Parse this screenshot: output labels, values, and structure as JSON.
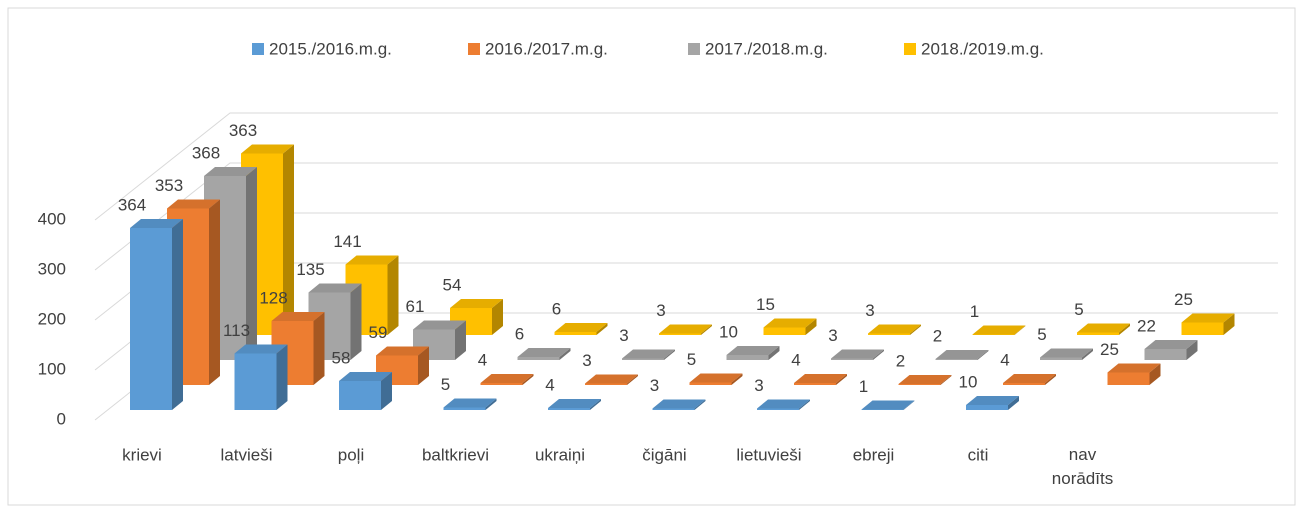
{
  "chart_data": {
    "type": "bar3d",
    "categories": [
      "krievi",
      "latvieši",
      "poļi",
      "baltkrievi",
      "ukraiņi",
      "čigāni",
      "lietuvieši",
      "ebreji",
      "citi",
      "nav norādīts"
    ],
    "series": [
      {
        "name": "2015./2016.m.g.",
        "color": "#5b9bd5",
        "values": [
          364,
          113,
          58,
          5,
          4,
          3,
          3,
          1,
          10,
          null
        ]
      },
      {
        "name": "2016./2017.m.g.",
        "color": "#ed7d31",
        "values": [
          353,
          128,
          59,
          4,
          3,
          5,
          4,
          2,
          4,
          25
        ]
      },
      {
        "name": "2017./2018.m.g.",
        "color": "#a5a5a5",
        "values": [
          368,
          135,
          61,
          6,
          3,
          10,
          3,
          2,
          5,
          22
        ]
      },
      {
        "name": "2018./2019.m.g.",
        "color": "#ffc000",
        "values": [
          363,
          141,
          54,
          6,
          3,
          15,
          3,
          1,
          5,
          25
        ]
      }
    ],
    "ylim": [
      0,
      400
    ],
    "yticks": [
      0,
      100,
      200,
      300,
      400
    ],
    "grid": true,
    "legend": "top"
  }
}
